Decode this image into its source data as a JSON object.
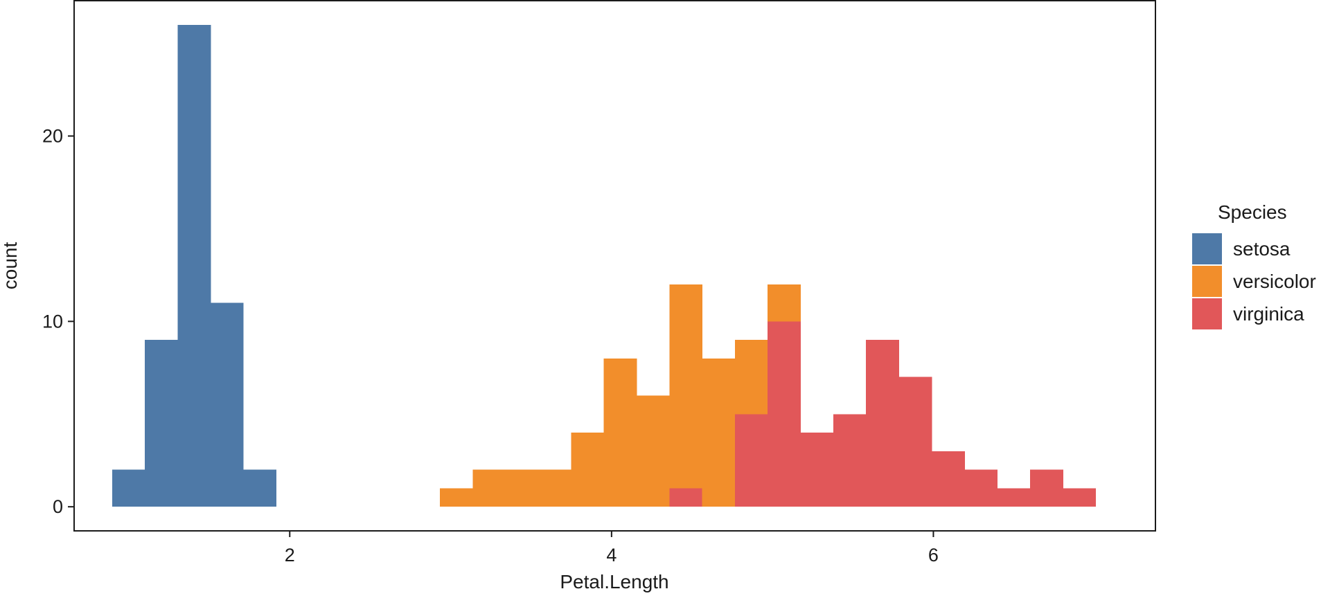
{
  "chart_data": {
    "type": "bar",
    "subtype": "stacked-histogram",
    "title": "",
    "xlabel": "Petal.Length",
    "ylabel": "count",
    "xlim": [
      0.66,
      7.38
    ],
    "ylim": [
      -1.3,
      27.3
    ],
    "x_ticks": [
      2,
      4,
      6
    ],
    "y_ticks": [
      0,
      10,
      20
    ],
    "grid": false,
    "legend": {
      "title": "Species",
      "placement": "right"
    },
    "bin_edges": [
      0.896,
      1.1,
      1.304,
      1.507,
      1.711,
      1.915,
      2.119,
      2.322,
      2.526,
      2.73,
      2.933,
      3.137,
      3.341,
      3.544,
      3.748,
      3.952,
      4.156,
      4.359,
      4.563,
      4.767,
      4.97,
      5.174,
      5.378,
      5.581,
      5.785,
      5.989,
      6.193,
      6.396,
      6.6,
      6.804,
      7.007
    ],
    "series": [
      {
        "name": "setosa",
        "color": "#4e79a7",
        "values": [
          2,
          9,
          26,
          11,
          2,
          0,
          0,
          0,
          0,
          0,
          0,
          0,
          0,
          0,
          0,
          0,
          0,
          0,
          0,
          0,
          0,
          0,
          0,
          0,
          0,
          0,
          0,
          0,
          0,
          0
        ]
      },
      {
        "name": "versicolor",
        "color": "#f28e2b",
        "values": [
          0,
          0,
          0,
          0,
          0,
          0,
          0,
          0,
          0,
          0,
          1,
          2,
          2,
          2,
          4,
          8,
          6,
          11,
          8,
          4,
          2,
          0,
          0,
          0,
          0,
          0,
          0,
          0,
          0,
          0
        ]
      },
      {
        "name": "virginica",
        "color": "#e15759",
        "values": [
          0,
          0,
          0,
          0,
          0,
          0,
          0,
          0,
          0,
          0,
          0,
          0,
          0,
          0,
          0,
          0,
          0,
          1,
          0,
          5,
          10,
          4,
          5,
          9,
          7,
          3,
          2,
          1,
          2,
          1
        ]
      }
    ]
  }
}
